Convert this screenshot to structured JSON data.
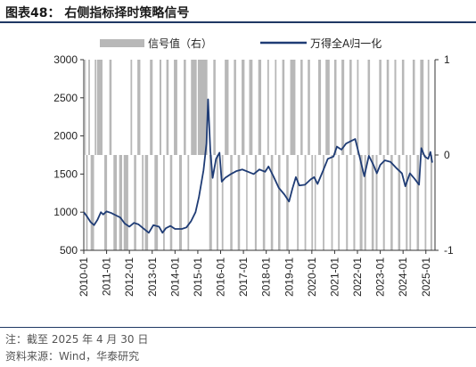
{
  "figure_label": "图表48：",
  "figure_title": "右侧指标择时策略信号",
  "note": "注：截至 2025 年 4 月 30 日",
  "source": "资料来源：Wind，华泰研究",
  "colors": {
    "index_line": "#1f3c75",
    "signal_bar": "#b8b8b8",
    "rule": "#1f3864"
  },
  "chart_data": {
    "type": "line+bar",
    "legend": [
      "信号值（右）",
      "万得全A归一化"
    ],
    "left_axis": {
      "ylim": [
        500,
        3000
      ],
      "ticks": [
        "3000",
        "2500",
        "2000",
        "1500",
        "1000",
        "500"
      ]
    },
    "right_axis": {
      "ylim": [
        -1,
        1
      ],
      "ticks": [
        "1",
        "0",
        "-1"
      ]
    },
    "x_ticks": [
      "2010-01",
      "2011-01",
      "2012-01",
      "2013-01",
      "2014-01",
      "2015-01",
      "2016-01",
      "2017-01",
      "2018-01",
      "2019-01",
      "2020-01",
      "2021-01",
      "2022-01",
      "2023-01",
      "2024-01",
      "2025-01"
    ],
    "series": [
      {
        "name": "万得全A归一化",
        "axis": "left",
        "points": [
          [
            2010.0,
            1000
          ],
          [
            2010.15,
            940
          ],
          [
            2010.3,
            870
          ],
          [
            2010.45,
            830
          ],
          [
            2010.6,
            900
          ],
          [
            2010.75,
            1000
          ],
          [
            2010.85,
            970
          ],
          [
            2011.0,
            1010
          ],
          [
            2011.2,
            990
          ],
          [
            2011.4,
            960
          ],
          [
            2011.6,
            930
          ],
          [
            2011.8,
            850
          ],
          [
            2012.0,
            810
          ],
          [
            2012.2,
            860
          ],
          [
            2012.4,
            840
          ],
          [
            2012.6,
            790
          ],
          [
            2012.85,
            730
          ],
          [
            2013.05,
            830
          ],
          [
            2013.3,
            810
          ],
          [
            2013.45,
            730
          ],
          [
            2013.6,
            790
          ],
          [
            2013.8,
            820
          ],
          [
            2014.0,
            780
          ],
          [
            2014.3,
            780
          ],
          [
            2014.5,
            800
          ],
          [
            2014.7,
            880
          ],
          [
            2014.9,
            1000
          ],
          [
            2015.05,
            1200
          ],
          [
            2015.25,
            1550
          ],
          [
            2015.38,
            1900
          ],
          [
            2015.45,
            2480
          ],
          [
            2015.55,
            1800
          ],
          [
            2015.65,
            1450
          ],
          [
            2015.8,
            1700
          ],
          [
            2015.95,
            1780
          ],
          [
            2016.05,
            1400
          ],
          [
            2016.2,
            1450
          ],
          [
            2016.45,
            1500
          ],
          [
            2016.7,
            1540
          ],
          [
            2016.95,
            1560
          ],
          [
            2017.2,
            1530
          ],
          [
            2017.45,
            1500
          ],
          [
            2017.7,
            1560
          ],
          [
            2017.95,
            1530
          ],
          [
            2018.1,
            1600
          ],
          [
            2018.3,
            1480
          ],
          [
            2018.55,
            1320
          ],
          [
            2018.8,
            1230
          ],
          [
            2019.0,
            1140
          ],
          [
            2019.15,
            1310
          ],
          [
            2019.3,
            1460
          ],
          [
            2019.45,
            1350
          ],
          [
            2019.7,
            1360
          ],
          [
            2019.95,
            1430
          ],
          [
            2020.1,
            1460
          ],
          [
            2020.25,
            1370
          ],
          [
            2020.5,
            1550
          ],
          [
            2020.7,
            1700
          ],
          [
            2020.95,
            1730
          ],
          [
            2021.1,
            1860
          ],
          [
            2021.3,
            1820
          ],
          [
            2021.5,
            1900
          ],
          [
            2021.7,
            1930
          ],
          [
            2021.9,
            1960
          ],
          [
            2022.1,
            1720
          ],
          [
            2022.3,
            1470
          ],
          [
            2022.5,
            1740
          ],
          [
            2022.7,
            1620
          ],
          [
            2022.85,
            1510
          ],
          [
            2023.0,
            1620
          ],
          [
            2023.2,
            1680
          ],
          [
            2023.45,
            1660
          ],
          [
            2023.7,
            1580
          ],
          [
            2023.95,
            1510
          ],
          [
            2024.1,
            1340
          ],
          [
            2024.3,
            1510
          ],
          [
            2024.5,
            1440
          ],
          [
            2024.7,
            1360
          ],
          [
            2024.8,
            1840
          ],
          [
            2024.95,
            1730
          ],
          [
            2025.1,
            1700
          ],
          [
            2025.2,
            1790
          ],
          [
            2025.28,
            1650
          ]
        ]
      },
      {
        "name": "信号值（右）",
        "axis": "right",
        "intervals": [
          [
            2010.05,
            2010.09,
            1
          ],
          [
            2010.1,
            2010.17,
            -1
          ],
          [
            2010.2,
            2010.27,
            1
          ],
          [
            2010.3,
            2010.45,
            -1
          ],
          [
            2010.48,
            2010.55,
            1
          ],
          [
            2010.58,
            2010.82,
            1
          ],
          [
            2010.9,
            2011.02,
            -1
          ],
          [
            2011.12,
            2011.22,
            1
          ],
          [
            2011.3,
            2011.45,
            -1
          ],
          [
            2011.55,
            2011.68,
            -1
          ],
          [
            2011.75,
            2011.95,
            -1
          ],
          [
            2012.05,
            2012.12,
            1
          ],
          [
            2012.2,
            2012.3,
            -1
          ],
          [
            2012.35,
            2012.48,
            1
          ],
          [
            2012.55,
            2012.62,
            -1
          ],
          [
            2012.68,
            2012.82,
            -1
          ],
          [
            2012.9,
            2013.02,
            1
          ],
          [
            2013.1,
            2013.25,
            -1
          ],
          [
            2013.32,
            2013.4,
            1
          ],
          [
            2013.48,
            2013.55,
            -1
          ],
          [
            2013.62,
            2013.72,
            1
          ],
          [
            2013.78,
            2013.88,
            -1
          ],
          [
            2013.95,
            2014.1,
            1
          ],
          [
            2014.18,
            2014.3,
            -1
          ],
          [
            2014.38,
            2014.48,
            1
          ],
          [
            2014.55,
            2014.62,
            -1
          ],
          [
            2014.7,
            2014.95,
            1
          ],
          [
            2015.0,
            2015.42,
            1
          ],
          [
            2015.5,
            2015.62,
            -1
          ],
          [
            2015.68,
            2015.78,
            1
          ],
          [
            2015.82,
            2015.9,
            -1
          ],
          [
            2016.05,
            2016.12,
            -1
          ],
          [
            2016.18,
            2016.35,
            1
          ],
          [
            2016.42,
            2016.52,
            -1
          ],
          [
            2016.58,
            2016.68,
            1
          ],
          [
            2016.75,
            2016.85,
            -1
          ],
          [
            2016.92,
            2017.05,
            1
          ],
          [
            2017.12,
            2017.18,
            -1
          ],
          [
            2017.25,
            2017.4,
            1
          ],
          [
            2017.5,
            2017.58,
            -1
          ],
          [
            2017.65,
            2017.78,
            1
          ],
          [
            2017.85,
            2017.95,
            -1
          ],
          [
            2018.05,
            2018.12,
            1
          ],
          [
            2018.2,
            2018.3,
            -1
          ],
          [
            2018.38,
            2018.45,
            1
          ],
          [
            2018.52,
            2018.62,
            -1
          ],
          [
            2018.7,
            2018.8,
            1
          ],
          [
            2018.88,
            2018.98,
            -1
          ],
          [
            2019.05,
            2019.28,
            1
          ],
          [
            2019.35,
            2019.42,
            -1
          ],
          [
            2019.5,
            2019.6,
            1
          ],
          [
            2019.68,
            2019.75,
            -1
          ],
          [
            2019.82,
            2019.92,
            1
          ],
          [
            2019.98,
            2020.05,
            -1
          ],
          [
            2020.12,
            2020.18,
            -1
          ],
          [
            2020.28,
            2020.4,
            1
          ],
          [
            2020.48,
            2020.55,
            -1
          ],
          [
            2020.6,
            2020.78,
            1
          ],
          [
            2020.85,
            2020.92,
            -1
          ],
          [
            2020.98,
            2021.08,
            1
          ],
          [
            2021.15,
            2021.22,
            -1
          ],
          [
            2021.3,
            2021.42,
            1
          ],
          [
            2021.5,
            2021.58,
            -1
          ],
          [
            2021.65,
            2021.75,
            1
          ],
          [
            2021.82,
            2021.9,
            -1
          ],
          [
            2021.98,
            2022.05,
            1
          ],
          [
            2022.1,
            2022.22,
            -1
          ],
          [
            2022.3,
            2022.38,
            -1
          ],
          [
            2022.45,
            2022.55,
            1
          ],
          [
            2022.62,
            2022.72,
            -1
          ],
          [
            2022.8,
            2022.88,
            -1
          ],
          [
            2022.95,
            2023.05,
            1
          ],
          [
            2023.12,
            2023.2,
            -1
          ],
          [
            2023.28,
            2023.38,
            1
          ],
          [
            2023.45,
            2023.55,
            -1
          ],
          [
            2023.62,
            2023.7,
            1
          ],
          [
            2023.78,
            2023.88,
            -1
          ],
          [
            2023.95,
            2024.05,
            1
          ],
          [
            2024.12,
            2024.2,
            -1
          ],
          [
            2024.28,
            2024.35,
            -1
          ],
          [
            2024.42,
            2024.52,
            1
          ],
          [
            2024.6,
            2024.7,
            -1
          ],
          [
            2024.75,
            2024.9,
            1
          ],
          [
            2024.95,
            2025.02,
            -1
          ],
          [
            2025.08,
            2025.15,
            1
          ],
          [
            2025.2,
            2025.28,
            -1
          ]
        ]
      }
    ]
  }
}
